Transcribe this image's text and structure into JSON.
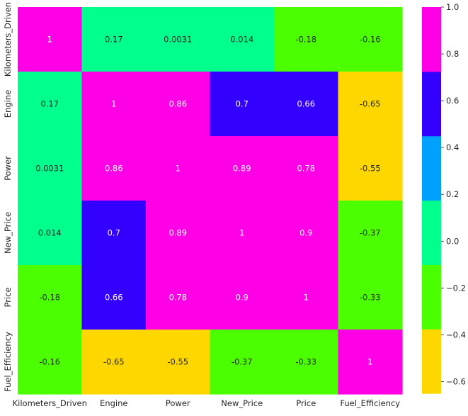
{
  "chart_data": {
    "type": "heatmap",
    "title": "",
    "x_labels": [
      "Kilometers_Driven",
      "Engine",
      "Power",
      "New_Price",
      "Price",
      "Fuel_Efficiency"
    ],
    "y_labels": [
      "Kilometers_Driven",
      "Engine",
      "Power",
      "New_Price",
      "Price",
      "Fuel_Efficiency"
    ],
    "cell_labels": [
      [
        "1",
        "0.17",
        "0.0031",
        "0.014",
        "-0.18",
        "-0.16"
      ],
      [
        "0.17",
        "1",
        "0.86",
        "0.7",
        "0.66",
        "-0.65"
      ],
      [
        "0.0031",
        "0.86",
        "1",
        "0.89",
        "0.78",
        "-0.55"
      ],
      [
        "0.014",
        "0.7",
        "0.89",
        "1",
        "0.9",
        "-0.37"
      ],
      [
        "-0.18",
        "0.66",
        "0.78",
        "0.9",
        "1",
        "-0.33"
      ],
      [
        "-0.16",
        "-0.65",
        "-0.55",
        "-0.37",
        "-0.33",
        "1"
      ]
    ],
    "values": [
      [
        1,
        0.17,
        0.0031,
        0.014,
        -0.18,
        -0.16
      ],
      [
        0.17,
        1,
        0.86,
        0.7,
        0.66,
        -0.65
      ],
      [
        0.0031,
        0.86,
        1,
        0.89,
        0.78,
        -0.55
      ],
      [
        0.014,
        0.7,
        0.89,
        1,
        0.9,
        -0.37
      ],
      [
        -0.18,
        0.66,
        0.78,
        0.9,
        1,
        -0.33
      ],
      [
        -0.16,
        -0.65,
        -0.55,
        -0.37,
        -0.33,
        1
      ]
    ],
    "colorbar": {
      "vmin": -0.65,
      "vmax": 1.0,
      "tick_values": [
        1.0,
        0.8,
        0.6,
        0.4,
        0.2,
        0.0,
        -0.2,
        -0.4,
        -0.6
      ],
      "tick_labels": [
        "1.0",
        "0.8",
        "0.6",
        "0.4",
        "0.2",
        "0.0",
        "−0.2",
        "−0.4",
        "−0.6"
      ],
      "colors": [
        "#ffd700",
        "#4cff00",
        "#00ff8c",
        "#00a0ff",
        "#3300ff",
        "#ff00e6"
      ]
    }
  }
}
